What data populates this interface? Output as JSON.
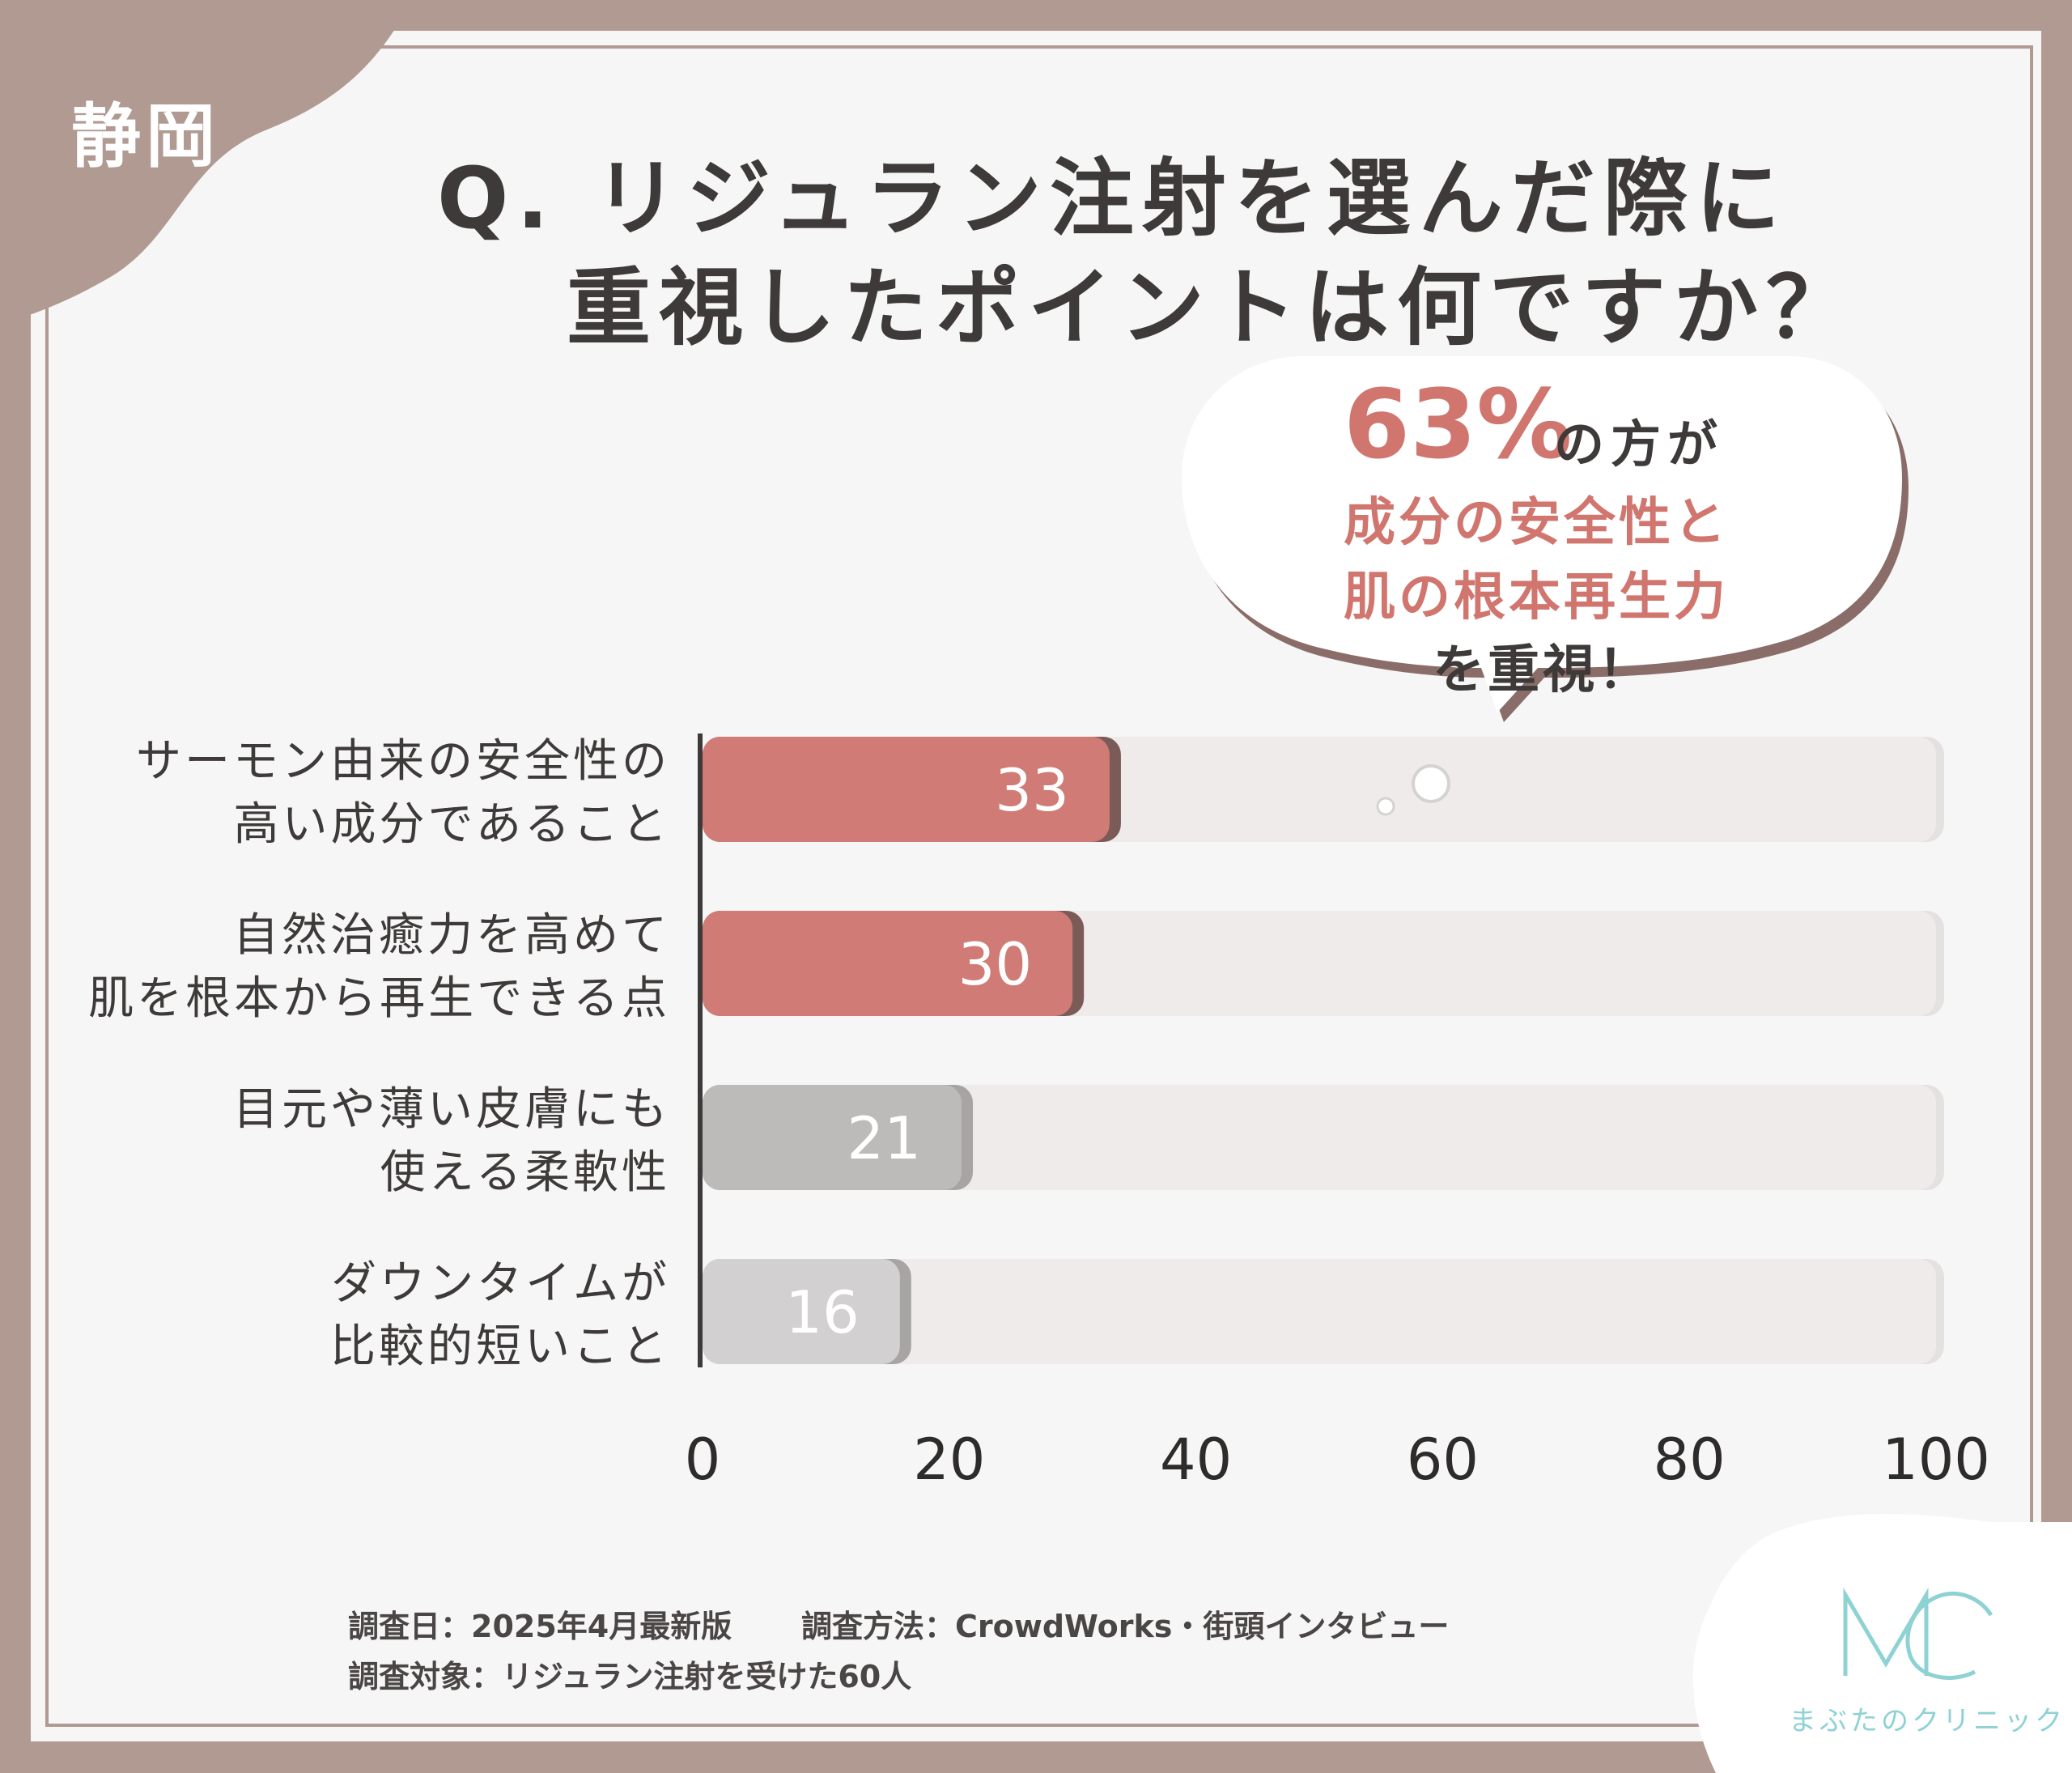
{
  "region": "静岡",
  "title": {
    "line1": "Q. リジュラン注射を選んだ際に",
    "line2": "重視したポイントは何ですか？"
  },
  "callout": {
    "percent": "63%",
    "suffix": "の方が",
    "highlight_line1": "成分の安全性と",
    "highlight_line2": "肌の根本再生力",
    "tail": "を重視！"
  },
  "chart_data": {
    "type": "bar",
    "orientation": "horizontal",
    "categories": [
      [
        "サーモン由来の安全性の",
        "高い成分であること"
      ],
      [
        "自然治癒力を高めて",
        "肌を根本から再生できる点"
      ],
      [
        "目元や薄い皮膚にも",
        "使える柔軟性"
      ],
      [
        "ダウンタイムが",
        "比較的短いこと"
      ]
    ],
    "values": [
      33,
      30,
      21,
      16
    ],
    "xlim": [
      0,
      100
    ],
    "xticks": [
      "0",
      "20",
      "40",
      "60",
      "80",
      "100"
    ],
    "colors": {
      "highlight": "#d07b75",
      "highlight_shadow": "#7b5b58",
      "muted_1": "#bdbaba",
      "muted_2": "#d2d0d0",
      "muted_shadow": "#a7a4a4",
      "track": "#efebeb"
    },
    "highlighted_rows": [
      0,
      1
    ]
  },
  "footer": {
    "date": "調査日：2025年4月最新版",
    "method": "調査方法：CrowdWorks・街頭インタビュー",
    "target": "調査対象：リジュラン注射を受けた60人"
  },
  "logo": {
    "mark": "MC",
    "name": "まぶたのクリニック"
  },
  "colors": {
    "frame": "#b09a92",
    "accent": "#d0766f",
    "logo": "#8fd2d4"
  }
}
